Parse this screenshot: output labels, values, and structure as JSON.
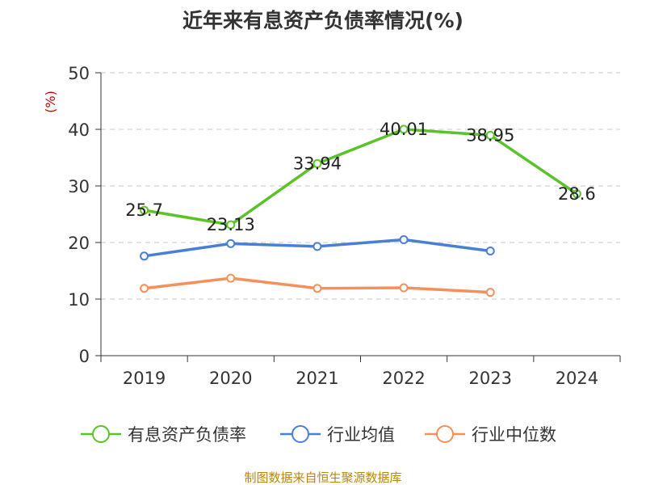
{
  "chart_data": {
    "type": "line",
    "title": "近年来有息资产负债率情况(%)",
    "unit_label": "(%)",
    "categories": [
      "2019",
      "2020",
      "2021",
      "2022",
      "2023",
      "2024"
    ],
    "ylim": [
      0,
      50
    ],
    "yticks": [
      0,
      10,
      20,
      30,
      40,
      50
    ],
    "grid": true,
    "legend_position": "bottom",
    "series": [
      {
        "name": "有息资产负债率",
        "color": "#5cc22c",
        "values": [
          25.7,
          23.13,
          33.94,
          40.01,
          38.95,
          28.6
        ],
        "labels": [
          "25.7",
          "23.13",
          "33.94",
          "40.01",
          "38.95",
          "28.6"
        ]
      },
      {
        "name": "行业均值",
        "color": "#4a7fd6",
        "values": [
          17.6,
          19.8,
          19.3,
          20.5,
          18.5,
          null
        ]
      },
      {
        "name": "行业中位数",
        "color": "#f4915a",
        "values": [
          11.9,
          13.7,
          11.9,
          12.0,
          11.2,
          null
        ]
      }
    ]
  },
  "source_text": "制图数据来自恒生聚源数据库"
}
